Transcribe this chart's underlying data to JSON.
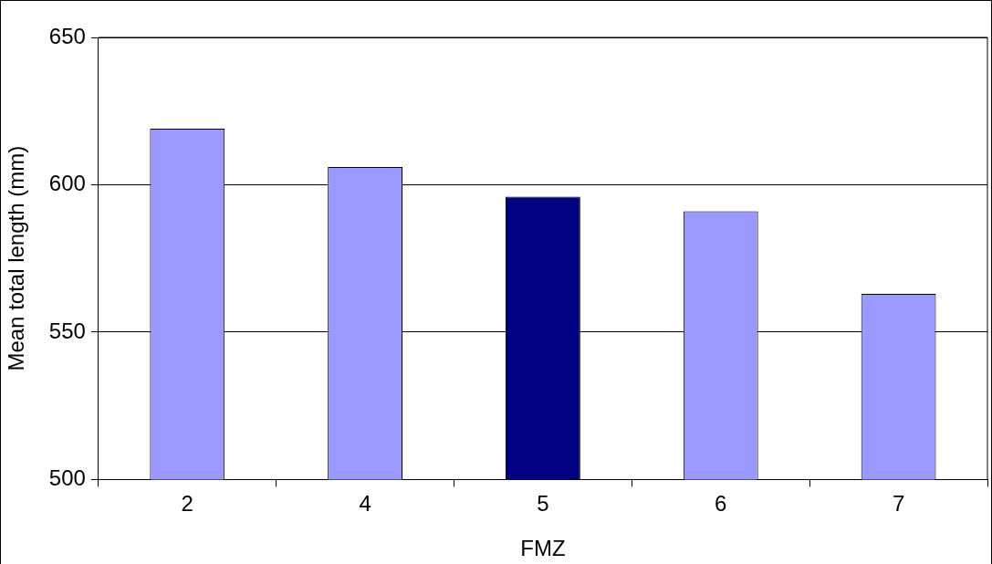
{
  "chart_data": {
    "type": "bar",
    "xlabel": "FMZ",
    "ylabel": "Mean total length (mm)",
    "categories": [
      "2",
      "4",
      "5",
      "6",
      "7"
    ],
    "values": [
      619,
      606,
      596,
      591,
      563
    ],
    "colors": [
      "#9999ff",
      "#9999ff",
      "#000080",
      "#9999ff",
      "#9999ff"
    ],
    "ylim": [
      500,
      650
    ],
    "yticks": [
      500,
      550,
      600,
      650
    ],
    "grid": "y",
    "legend": false
  }
}
